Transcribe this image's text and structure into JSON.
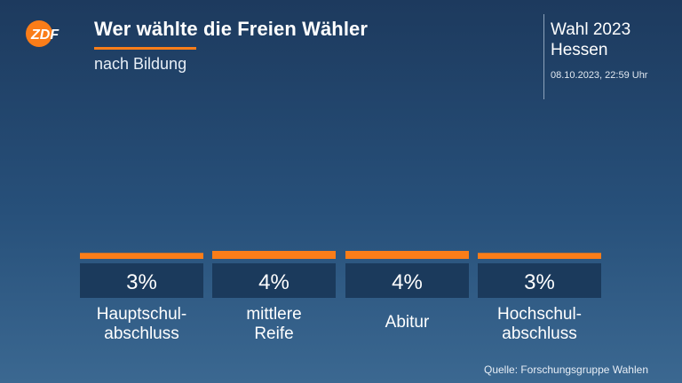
{
  "brand": {
    "logo_text": "ZDF",
    "accent_color": "#fa7d19",
    "bar_color": "#fa7d19",
    "box_color": "#1b3a5c"
  },
  "header": {
    "title": "Wer wählte die Freien Wähler",
    "subtitle": "nach Bildung"
  },
  "info": {
    "election_line1": "Wahl 2023",
    "election_line2": "Hessen",
    "timestamp": "08.10.2023, 22:59 Uhr"
  },
  "footer": {
    "source": "Quelle: Forschungsgruppe Wahlen"
  },
  "chart_data": {
    "type": "bar",
    "categories": [
      [
        "Hauptschul-",
        "abschluss"
      ],
      [
        "mittlere",
        "Reife"
      ],
      [
        "Abitur"
      ],
      [
        "Hochschul-",
        "abschluss"
      ]
    ],
    "values": [
      3,
      4,
      4,
      3
    ],
    "value_labels": [
      "3%",
      "4%",
      "4%",
      "3%"
    ],
    "unit": "%",
    "ylim": [
      0,
      4
    ],
    "grid": false,
    "legend": "none"
  }
}
